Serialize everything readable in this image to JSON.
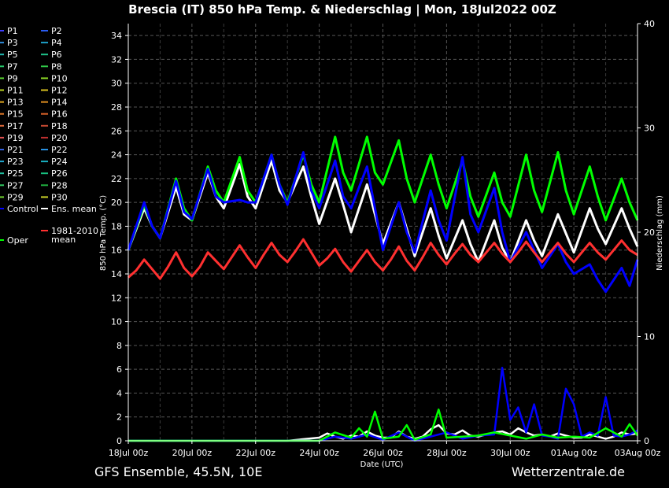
{
  "footer": {
    "left": "GFS Ensemble, 45.5N, 10E",
    "right": "Wetterzentrale.de"
  },
  "chart_data": {
    "type": "line",
    "title": "Brescia  (IT)  850 hPa Temp. & Niederschlag | Mon, 18Jul2022 00Z",
    "xlabel": "Date (UTC)",
    "ylabel": "850 hPa Temp. (°C)",
    "y2label": "Niederschlag (mm)",
    "ylim": [
      0,
      35
    ],
    "y2lim": [
      0,
      40
    ],
    "yticks": [
      0,
      2,
      4,
      6,
      8,
      10,
      12,
      14,
      16,
      18,
      20,
      22,
      24,
      26,
      28,
      30,
      32,
      34
    ],
    "y2ticks": [
      0,
      10,
      20,
      30,
      40
    ],
    "xticks": [
      "18Jul 00z",
      "20Jul 00z",
      "22Jul 00z",
      "24Jul 00z",
      "26Jul 00z",
      "28Jul 00z",
      "30Jul 00z",
      "01Aug 00z",
      "03Aug 00z"
    ],
    "grid": true,
    "x_days_since_start_range": [
      0,
      16
    ],
    "legend": [
      {
        "name": "P1",
        "color": "#3f3fff"
      },
      {
        "name": "P2",
        "color": "#2a5cf0"
      },
      {
        "name": "P3",
        "color": "#2f8bd8"
      },
      {
        "name": "P4",
        "color": "#1ea0c8"
      },
      {
        "name": "P5",
        "color": "#22b8b0"
      },
      {
        "name": "P6",
        "color": "#1fc28a"
      },
      {
        "name": "P7",
        "color": "#26c86a"
      },
      {
        "name": "P8",
        "color": "#30c848"
      },
      {
        "name": "P9",
        "color": "#58d030"
      },
      {
        "name": "P10",
        "color": "#8ad424"
      },
      {
        "name": "P11",
        "color": "#b8d020"
      },
      {
        "name": "P12",
        "color": "#d8c020"
      },
      {
        "name": "P13",
        "color": "#e0a820"
      },
      {
        "name": "P14",
        "color": "#e08e20"
      },
      {
        "name": "P15",
        "color": "#e07828"
      },
      {
        "name": "P16",
        "color": "#d86228"
      },
      {
        "name": "P17",
        "color": "#e06a3a"
      },
      {
        "name": "P18",
        "color": "#c84a32"
      },
      {
        "name": "P19",
        "color": "#e05050"
      },
      {
        "name": "P20",
        "color": "#c03030"
      },
      {
        "name": "P21",
        "color": "#3060e0"
      },
      {
        "name": "P22",
        "color": "#2890e0"
      },
      {
        "name": "P23",
        "color": "#20a8d0"
      },
      {
        "name": "P24",
        "color": "#18b0c0"
      },
      {
        "name": "P25",
        "color": "#20c0a0"
      },
      {
        "name": "P26",
        "color": "#18c080"
      },
      {
        "name": "P27",
        "color": "#30c860"
      },
      {
        "name": "P28",
        "color": "#20b040"
      },
      {
        "name": "P29",
        "color": "#70d030"
      },
      {
        "name": "P30",
        "color": "#c8d028"
      },
      {
        "name": "Control",
        "color": "#0000ff"
      },
      {
        "name": "Ens. mean",
        "color": "#ffffff"
      },
      {
        "name": "1981-2010 mean",
        "color": "#ff3030"
      },
      {
        "name": "Oper",
        "color": "#00ff00"
      }
    ],
    "series": [
      {
        "name": "Ens. mean",
        "color": "#ffffff",
        "axis": "temp",
        "x": [
          0,
          0.5,
          0.75,
          1,
          1.5,
          1.75,
          2,
          2.5,
          2.75,
          3,
          3.5,
          3.75,
          4,
          4.5,
          4.75,
          5,
          5.5,
          5.75,
          6,
          6.5,
          6.75,
          7,
          7.5,
          7.75,
          8,
          8.5,
          8.75,
          9,
          9.5,
          9.75,
          10,
          10.5,
          10.75,
          11,
          11.5,
          11.75,
          12,
          12.5,
          12.75,
          13,
          13.5,
          13.75,
          14,
          14.5,
          14.75,
          15,
          15.5,
          15.75,
          16
        ],
        "y": [
          16,
          19.5,
          18,
          17,
          21.3,
          19,
          18.5,
          22.5,
          20.5,
          19.5,
          23.2,
          20.5,
          19.5,
          23.5,
          21,
          20,
          23,
          20.5,
          18.2,
          22,
          19.8,
          17.5,
          21.5,
          19,
          16.5,
          20,
          17.8,
          15.5,
          19.5,
          17.2,
          15.3,
          18.5,
          16.5,
          15,
          18.5,
          16.2,
          15,
          18.5,
          16.8,
          15.5,
          19,
          17.4,
          15.8,
          19.5,
          17.8,
          16.5,
          19.5,
          17.8,
          16.3
        ]
      },
      {
        "name": "Oper",
        "color": "#00ff00",
        "axis": "temp",
        "x": [
          0,
          0.5,
          0.75,
          1,
          1.5,
          1.75,
          2,
          2.5,
          2.75,
          3,
          3.5,
          3.75,
          4,
          4.5,
          4.75,
          5,
          5.5,
          5.75,
          6,
          6.5,
          6.75,
          7,
          7.5,
          7.75,
          8,
          8.5,
          8.75,
          9,
          9.5,
          9.75,
          10,
          10.5,
          10.75,
          11,
          11.5,
          11.75,
          12,
          12.5,
          12.75,
          13,
          13.5,
          13.75,
          14,
          14.5,
          14.75,
          15,
          15.5,
          15.75,
          16
        ],
        "y": [
          16,
          19.8,
          18,
          17,
          22,
          19.5,
          18.5,
          23,
          21,
          20,
          23.8,
          21,
          20,
          24,
          21.5,
          20,
          24,
          21.5,
          20,
          25.5,
          22.5,
          21,
          25.5,
          22.5,
          21.5,
          25.2,
          22,
          20,
          24,
          21.5,
          19.5,
          23.5,
          20.5,
          18.8,
          22.5,
          20,
          18.8,
          24,
          21,
          19.2,
          24.2,
          21,
          19,
          23,
          20.5,
          18.5,
          22,
          20,
          18.5
        ]
      },
      {
        "name": "Control",
        "color": "#0000ff",
        "axis": "temp",
        "x": [
          0,
          0.5,
          0.75,
          1,
          1.5,
          1.75,
          2,
          2.5,
          2.75,
          3,
          3.5,
          3.75,
          4,
          4.5,
          4.75,
          5,
          5.5,
          5.75,
          6,
          6.5,
          6.75,
          7,
          7.5,
          7.75,
          8,
          8.5,
          8.75,
          9,
          9.5,
          9.75,
          10,
          10.5,
          10.75,
          11,
          11.5,
          11.75,
          12,
          12.5,
          12.75,
          13,
          13.5,
          13.75,
          14,
          14.5,
          14.75,
          15,
          15.5,
          15.75,
          16
        ],
        "y": [
          16,
          20,
          18,
          17,
          21.8,
          19.2,
          18.6,
          22.8,
          20.5,
          20,
          20.2,
          20,
          20,
          24,
          21.5,
          19.8,
          24.2,
          21,
          19.5,
          23.5,
          20.5,
          19.5,
          23,
          19.5,
          16,
          20,
          17.5,
          15.8,
          21,
          18.5,
          16.8,
          23.8,
          19,
          17.5,
          21.2,
          17.5,
          15,
          17.5,
          16,
          14.5,
          16.5,
          15,
          14,
          14.8,
          13.5,
          12.5,
          14.5,
          13,
          15.2
        ]
      },
      {
        "name": "1981-2010 mean",
        "color": "#ff3030",
        "axis": "temp",
        "x": [
          0,
          0.25,
          0.5,
          0.75,
          1,
          1.25,
          1.5,
          1.75,
          2,
          2.25,
          2.5,
          2.75,
          3,
          3.25,
          3.5,
          3.75,
          4,
          4.25,
          4.5,
          4.75,
          5,
          5.25,
          5.5,
          5.75,
          6,
          6.25,
          6.5,
          6.75,
          7,
          7.25,
          7.5,
          7.75,
          8,
          8.25,
          8.5,
          8.75,
          9,
          9.25,
          9.5,
          9.75,
          10,
          10.25,
          10.5,
          10.75,
          11,
          11.25,
          11.5,
          11.75,
          12,
          12.25,
          12.5,
          12.75,
          13,
          13.25,
          13.5,
          13.75,
          14,
          14.25,
          14.5,
          14.75,
          15,
          15.25,
          15.5,
          15.75,
          16
        ],
        "y": [
          13.7,
          14.3,
          15.2,
          14.4,
          13.6,
          14.6,
          15.8,
          14.5,
          13.8,
          14.6,
          15.8,
          15.1,
          14.4,
          15.4,
          16.4,
          15.4,
          14.5,
          15.6,
          16.6,
          15.6,
          15,
          15.9,
          16.9,
          15.8,
          14.7,
          15.3,
          16.1,
          15,
          14.2,
          15.1,
          16,
          15,
          14.3,
          15.2,
          16.3,
          15.1,
          14.3,
          15.4,
          16.6,
          15.6,
          14.8,
          15.7,
          16.5,
          15.6,
          15,
          15.8,
          16.6,
          15.7,
          15,
          15.8,
          16.7,
          15.8,
          15,
          15.8,
          16.6,
          15.7,
          15,
          15.8,
          16.6,
          15.8,
          15.2,
          16,
          16.8,
          16,
          15.6
        ]
      },
      {
        "name": "Ens. mean precipitation",
        "color": "#ffffff",
        "axis": "precip",
        "x": [
          0,
          1,
          2,
          3,
          4,
          5,
          6,
          6.25,
          6.5,
          6.75,
          7,
          7.25,
          7.5,
          7.75,
          8,
          8.25,
          8.5,
          8.75,
          9,
          9.25,
          9.5,
          9.75,
          10,
          10.25,
          10.5,
          10.75,
          11,
          11.25,
          11.5,
          11.75,
          12,
          12.25,
          12.5,
          12.75,
          13,
          13.25,
          13.5,
          13.75,
          14,
          14.25,
          14.5,
          14.75,
          15,
          15.25,
          15.5,
          15.75,
          16
        ],
        "y": [
          0,
          0,
          0,
          0,
          0,
          0,
          0.3,
          0.7,
          0.4,
          0.2,
          0.5,
          0.4,
          0.9,
          0.5,
          0.3,
          0.3,
          0.9,
          0.4,
          0.2,
          0.4,
          1.1,
          1.5,
          0.7,
          0.6,
          1,
          0.5,
          0.4,
          0.6,
          0.8,
          0.9,
          0.6,
          1.2,
          0.8,
          0.5,
          0.6,
          0.4,
          0.7,
          0.5,
          0.3,
          0.3,
          0.6,
          0.4,
          0.2,
          0.4,
          0.8,
          0.6,
          0.7
        ]
      },
      {
        "name": "Control precipitation",
        "color": "#0000ff",
        "axis": "precip",
        "x": [
          0,
          6,
          6.5,
          7,
          7.5,
          8,
          8.5,
          9,
          9.5,
          10,
          10.5,
          11,
          11.5,
          11.75,
          12,
          12.25,
          12.5,
          12.75,
          13,
          13.25,
          13.5,
          13.75,
          14,
          14.25,
          14.5,
          14.75,
          15,
          15.25,
          15.5,
          15.75,
          16
        ],
        "y": [
          0,
          0,
          0.4,
          0.2,
          0.6,
          0.1,
          0.8,
          0,
          0.4,
          0.8,
          0.2,
          0.5,
          0.6,
          7,
          2,
          3.2,
          0.8,
          3.5,
          0.5,
          0.4,
          0.2,
          5,
          3.5,
          0.4,
          0.8,
          0.5,
          4.2,
          0.5,
          0.4,
          0.6,
          1
        ]
      },
      {
        "name": "Oper precipitation",
        "color": "#00ff00",
        "axis": "precip",
        "x": [
          0,
          6,
          6.5,
          7,
          7.25,
          7.5,
          7.75,
          8,
          8.5,
          8.75,
          9,
          9.5,
          9.75,
          10,
          10.5,
          11,
          11.5,
          12,
          12.5,
          13,
          13.5,
          14,
          14.5,
          15,
          15.5,
          15.75,
          16
        ],
        "y": [
          0,
          0,
          0.8,
          0.3,
          1.2,
          0.4,
          2.8,
          0.2,
          0.4,
          1.5,
          0.1,
          0.6,
          3,
          0.3,
          0.4,
          0.5,
          0.8,
          0.5,
          0.2,
          0.6,
          0.3,
          0.4,
          0.3,
          1.2,
          0.4,
          1.6,
          0.5
        ]
      }
    ]
  }
}
